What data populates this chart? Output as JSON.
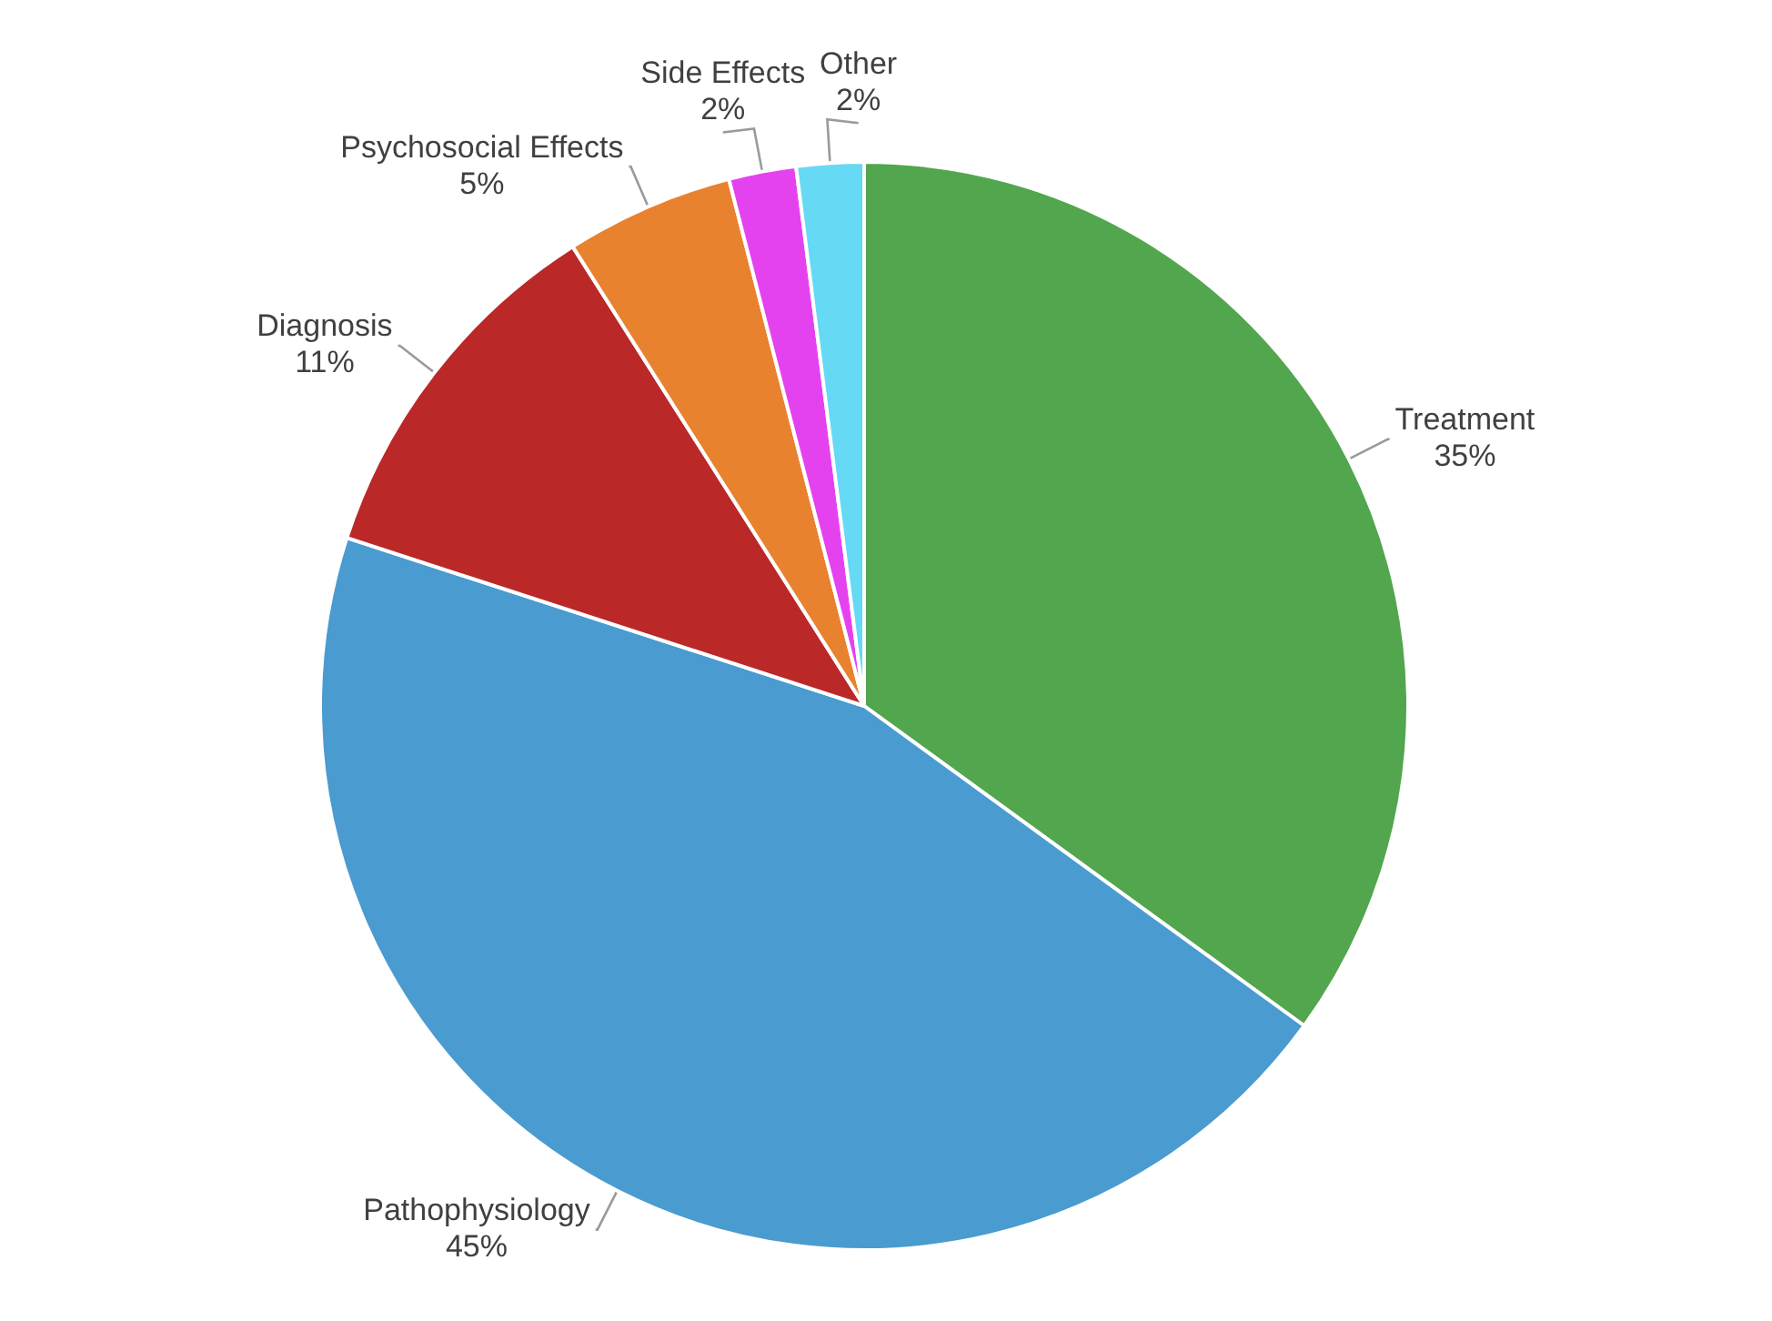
{
  "chart_data": {
    "type": "pie",
    "categories": [
      "Treatment",
      "Pathophysiology",
      "Diagnosis",
      "Psychosocial Effects",
      "Side Effects",
      "Other"
    ],
    "values": [
      35,
      45,
      11,
      5,
      2,
      2
    ],
    "colors": [
      "#52a64e",
      "#4a9bd0",
      "#bb2828",
      "#e8822f",
      "#e542ef",
      "#66d9f5"
    ],
    "value_labels": [
      "35%",
      "45%",
      "11%",
      "5%",
      "2%",
      "2%"
    ],
    "legend": false
  }
}
